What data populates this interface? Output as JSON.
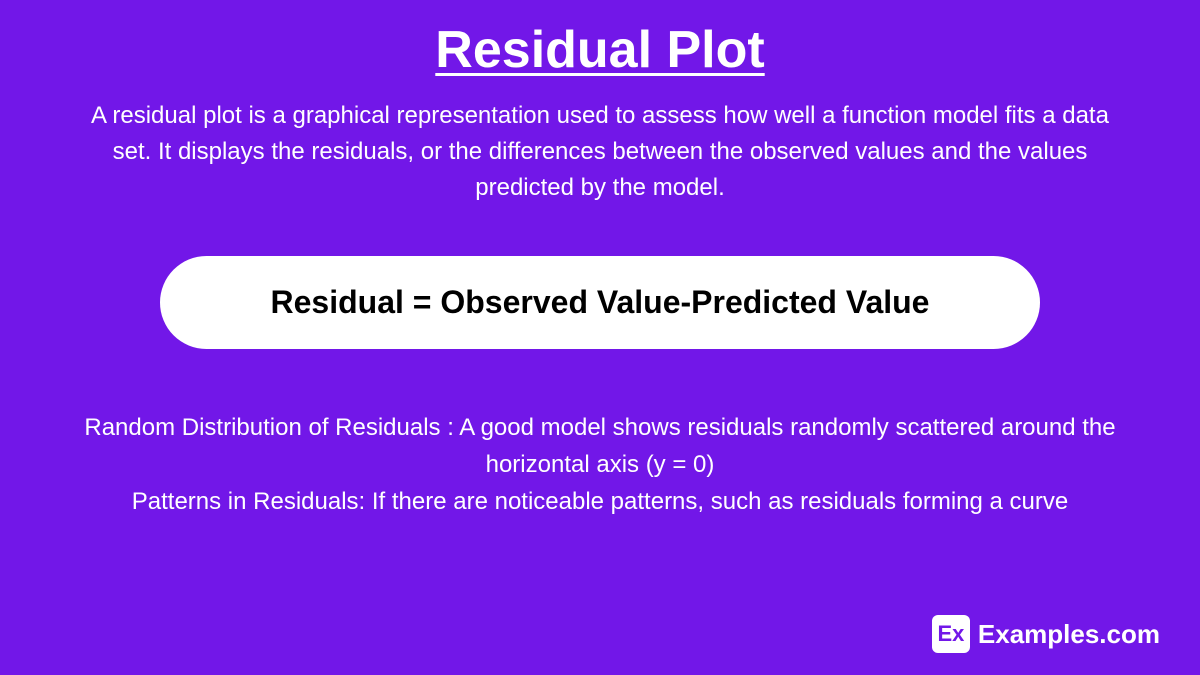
{
  "background_color": "#7217e8",
  "text_color": "#ffffff",
  "title": {
    "text": "Residual Plot",
    "fontsize": 52,
    "fontweight": 800,
    "underline": true
  },
  "description": {
    "text": "A residual plot is a graphical representation used to assess how well a function model fits a data set. It displays the residuals, or the differences between the observed values and the values predicted by the model.",
    "fontsize": 24
  },
  "formula": {
    "text": "Residual = Observed Value-Predicted Value",
    "fontsize": 32,
    "fontweight": 800,
    "box_background": "#ffffff",
    "box_text_color": "#000000",
    "border_radius": 50
  },
  "notes": {
    "line1": "Random Distribution of Residuals : A good model shows residuals randomly scattered around the horizontal axis (y = 0)",
    "line2": "Patterns in Residuals: If there are noticeable patterns, such as residuals forming a curve",
    "fontsize": 24
  },
  "logo": {
    "icon_text": "Ex",
    "label": "Examples.com",
    "icon_background": "#ffffff",
    "icon_text_color": "#7217e8"
  }
}
